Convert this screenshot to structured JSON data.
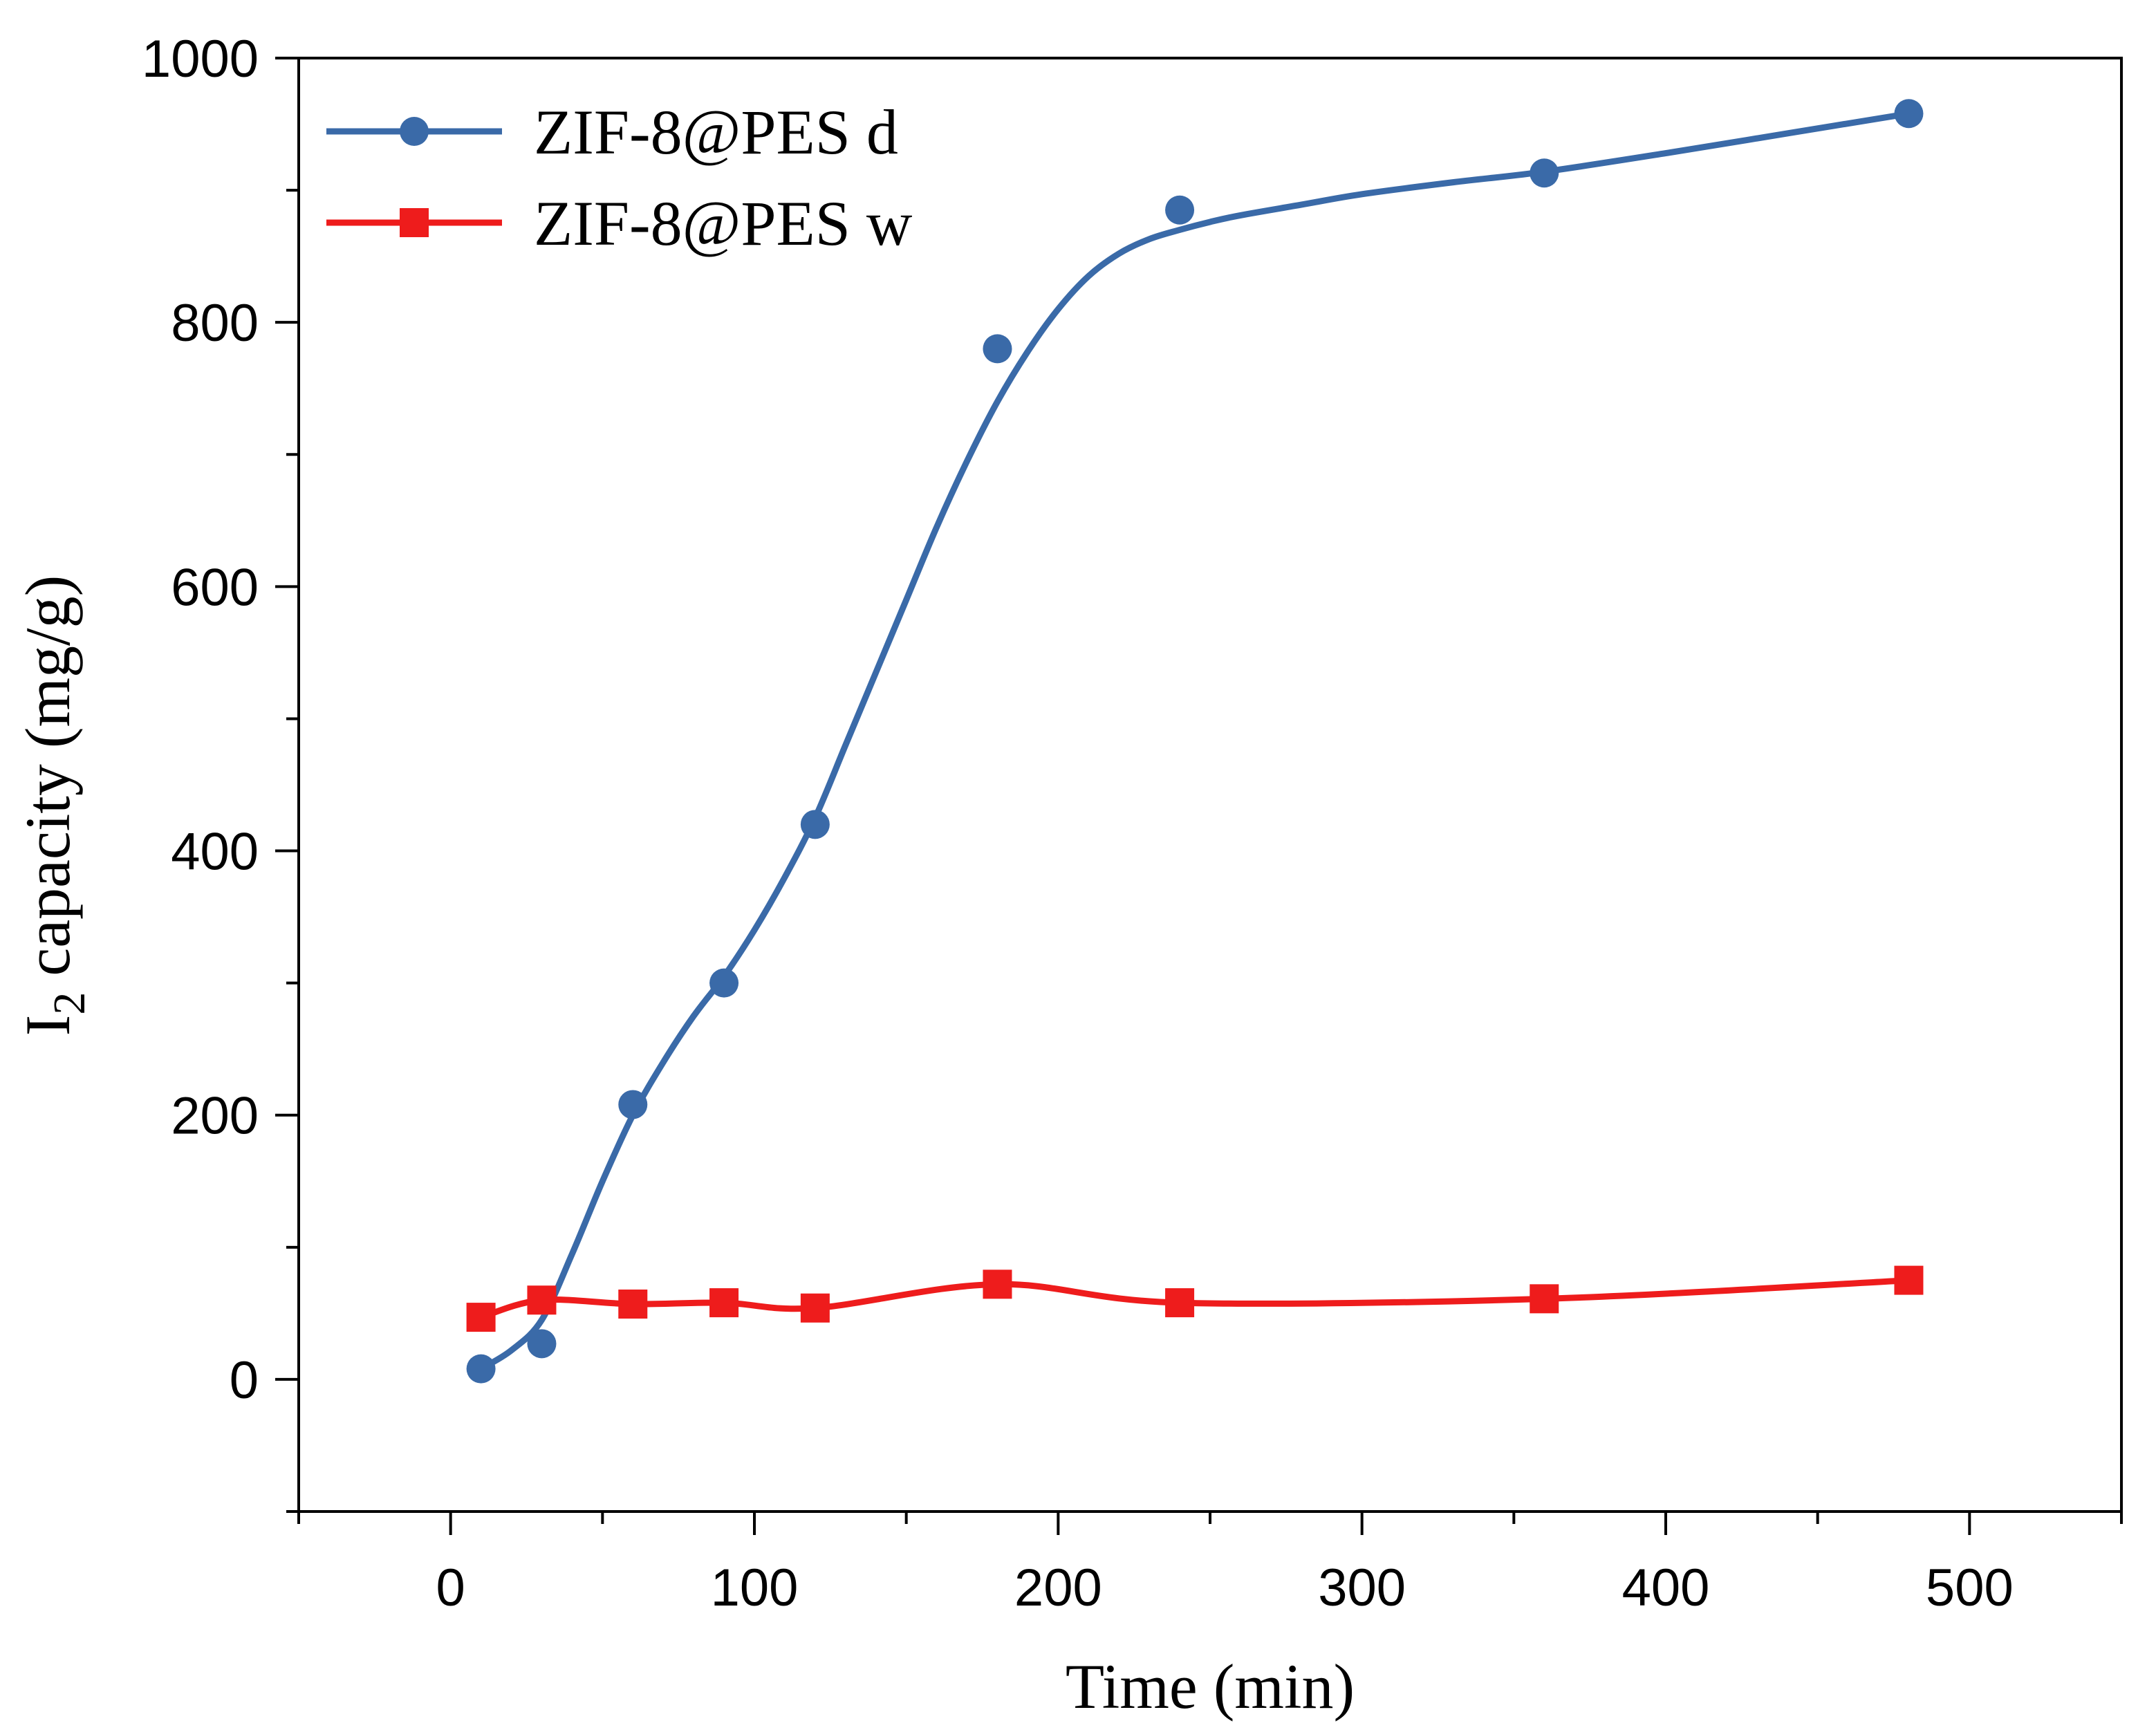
{
  "chart_data": {
    "type": "line",
    "title": "",
    "xlabel": "Time (min)",
    "ylabel_main": "I",
    "ylabel_sub": "2",
    "ylabel_rest": " capacity (mg/g)",
    "xlim": [
      -50,
      550
    ],
    "ylim": [
      -100,
      1000
    ],
    "xticks": [
      0,
      100,
      200,
      300,
      400,
      500
    ],
    "yticks": [
      0,
      200,
      400,
      600,
      800,
      1000
    ],
    "xtick_labels": [
      "0",
      "100",
      "200",
      "300",
      "400",
      "500"
    ],
    "ytick_labels": [
      "0",
      "200",
      "400",
      "600",
      "800",
      "1000"
    ],
    "grid": false,
    "legend_position": "top-left",
    "series": [
      {
        "name": "ZIF-8@PES d",
        "color": "#3a6aa8",
        "marker": "circle",
        "line": "smooth-fit",
        "x": [
          10,
          30,
          60,
          90,
          120,
          180,
          240,
          360,
          480
        ],
        "y": [
          8,
          27,
          208,
          300,
          420,
          780,
          885,
          913,
          958
        ],
        "fit_x": [
          10,
          20,
          30,
          40,
          50,
          60,
          70,
          80,
          90,
          100,
          110,
          120,
          130,
          140,
          150,
          160,
          170,
          180,
          190,
          200,
          210,
          220,
          230,
          240,
          250,
          260,
          280,
          300,
          330,
          360,
          400,
          440,
          480
        ],
        "fit_y": [
          8,
          22,
          45,
          95,
          150,
          200,
          240,
          275,
          305,
          340,
          380,
          425,
          480,
          535,
          590,
          645,
          695,
          740,
          778,
          810,
          835,
          852,
          863,
          870,
          876,
          881,
          889,
          897,
          906,
          914,
          928,
          943,
          958
        ]
      },
      {
        "name": "ZIF-8@PES w",
        "color": "#ee1c1c",
        "marker": "square",
        "line": "smooth",
        "x": [
          10,
          30,
          60,
          90,
          120,
          180,
          240,
          360,
          480
        ],
        "y": [
          47,
          60,
          57,
          58,
          54,
          72,
          58,
          61,
          75
        ]
      }
    ]
  }
}
